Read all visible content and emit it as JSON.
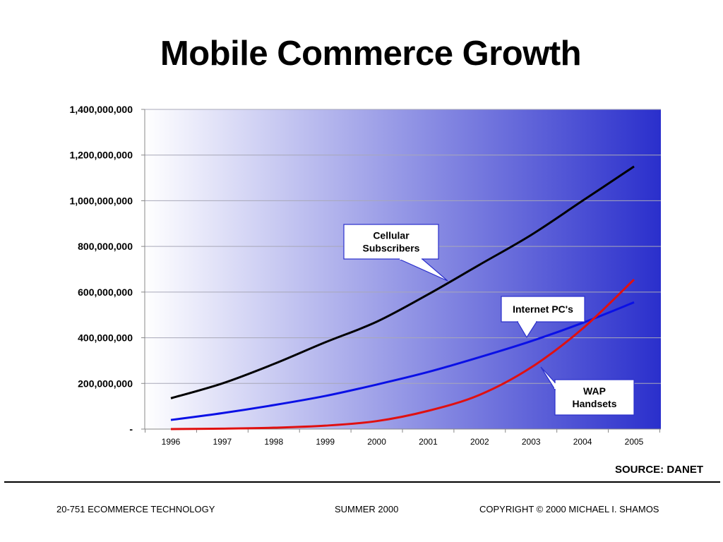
{
  "slide": {
    "title": "Mobile Commerce Growth",
    "source": "SOURCE: DANET",
    "footer": {
      "left": "20-751 ECOMMERCE TECHNOLOGY",
      "center": "SUMMER 2000",
      "right": "COPYRIGHT © 2000 MICHAEL I. SHAMOS"
    }
  },
  "chart_data": {
    "type": "line",
    "title": "",
    "xlabel": "",
    "ylabel": "",
    "x": [
      "1996",
      "1997",
      "1998",
      "1999",
      "2000",
      "2001",
      "2002",
      "2003",
      "2004",
      "2005"
    ],
    "ylim": [
      0,
      1400000000
    ],
    "yticks": [
      0,
      200000000,
      400000000,
      600000000,
      800000000,
      1000000000,
      1200000000,
      1400000000
    ],
    "ytick_labels": [
      "-",
      "200,000,000",
      "400,000,000",
      "600,000,000",
      "800,000,000",
      "1,000,000,000",
      "1,200,000,000",
      "1,400,000,000"
    ],
    "grid": true,
    "background": "horizontal gradient white to blue",
    "background_colors": [
      "#ffffff",
      "#2a2fcc"
    ],
    "series": [
      {
        "name": "Cellular Subscribers",
        "color": "#000000",
        "values": [
          135000000,
          200000000,
          285000000,
          380000000,
          470000000,
          590000000,
          720000000,
          850000000,
          1000000000,
          1150000000
        ]
      },
      {
        "name": "Internet PC's",
        "color": "#0a10e6",
        "values": [
          40000000,
          70000000,
          105000000,
          145000000,
          195000000,
          250000000,
          315000000,
          385000000,
          465000000,
          555000000
        ]
      },
      {
        "name": "WAP Handsets",
        "color": "#e01010",
        "values": [
          0,
          2000000,
          6000000,
          15000000,
          35000000,
          80000000,
          150000000,
          270000000,
          440000000,
          655000000
        ]
      }
    ],
    "callouts": [
      {
        "series": 0,
        "label": [
          "Cellular",
          "Subscribers"
        ]
      },
      {
        "series": 1,
        "label": [
          "Internet PC's"
        ]
      },
      {
        "series": 2,
        "label": [
          "WAP",
          "Handsets"
        ]
      }
    ]
  }
}
